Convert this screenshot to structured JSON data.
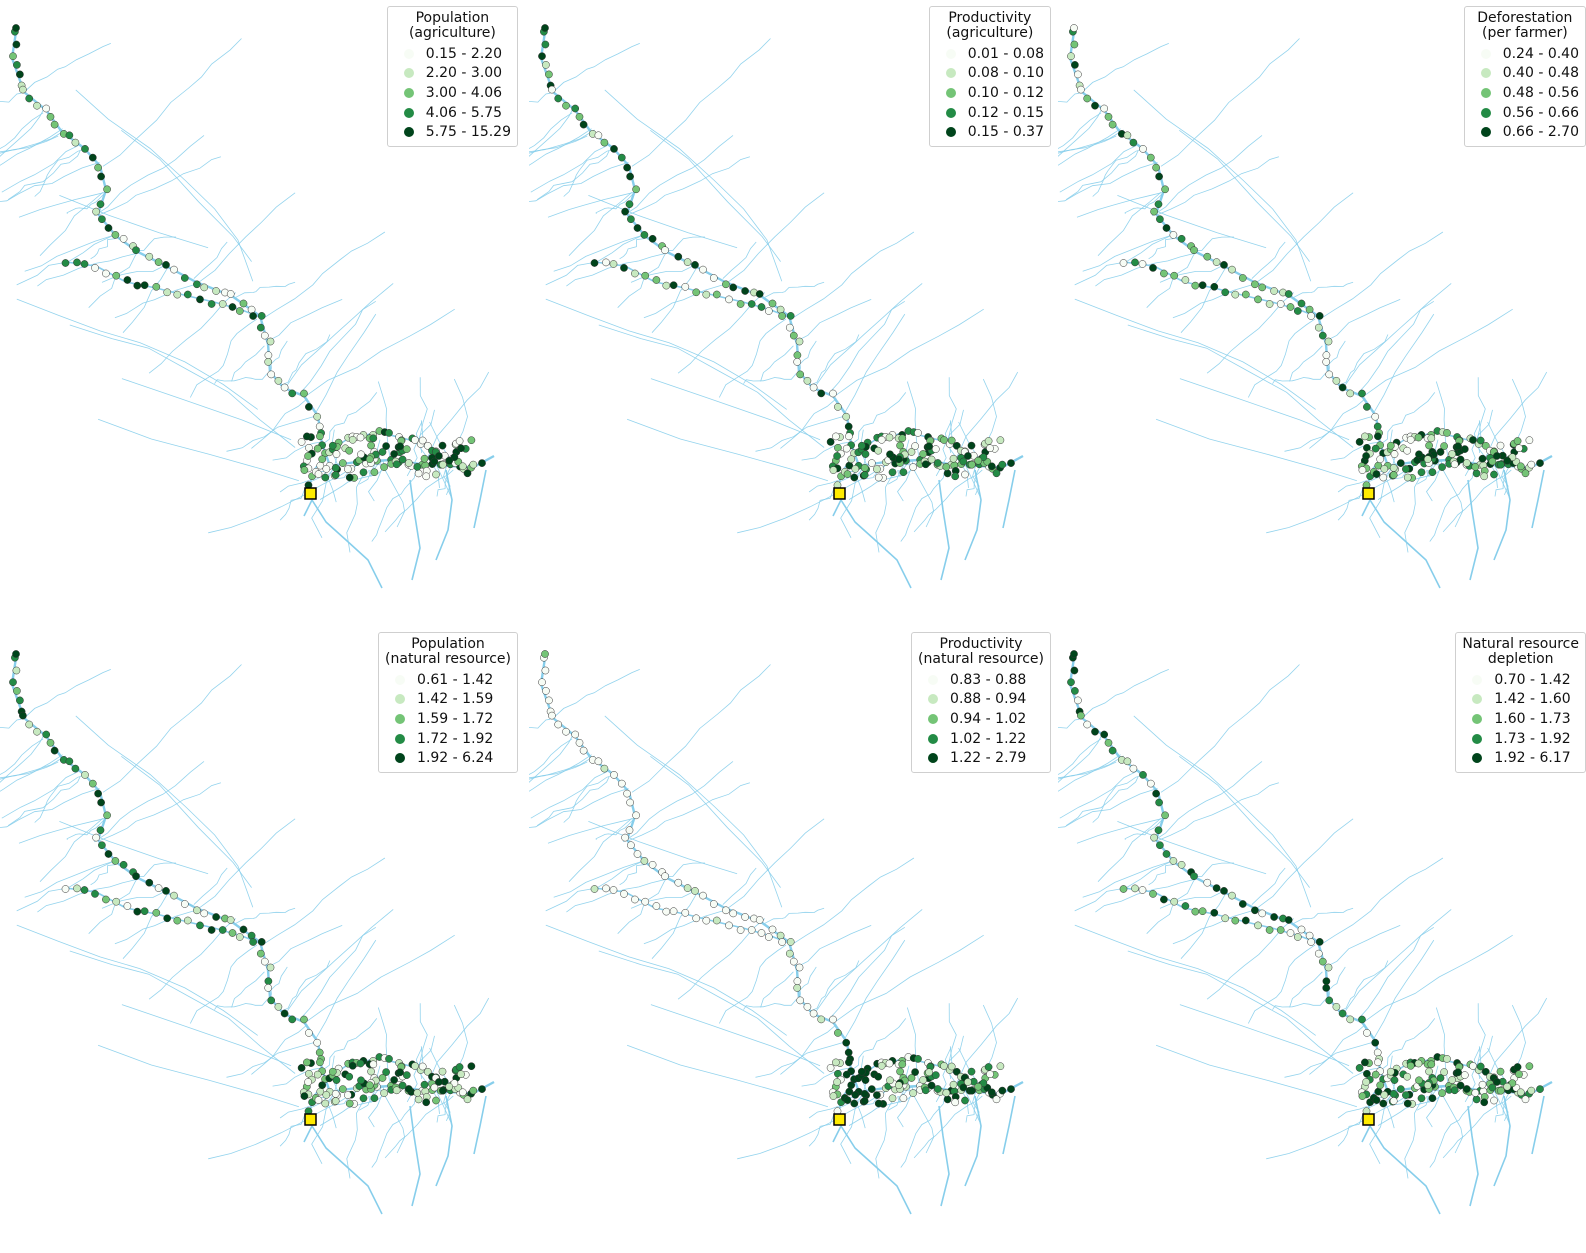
{
  "figure": {
    "classes": [
      "#f7fcf5",
      "#c7e9c0",
      "#74c476",
      "#238b45",
      "#00441b"
    ],
    "river_color": "#87ceeb",
    "marker_color": "#ffeb00",
    "panels": [
      {
        "id": "population-agriculture",
        "legend_title": "Population\n(agriculture)",
        "legend_labels": [
          "0.15 - 2.20",
          "2.20 - 3.00",
          "3.00 - 4.06",
          "4.06 - 5.75",
          "5.75 - 15.29"
        ]
      },
      {
        "id": "productivity-agriculture",
        "legend_title": "Productivity\n(agriculture)",
        "legend_labels": [
          "0.01 - 0.08",
          "0.08 - 0.10",
          "0.10 - 0.12",
          "0.12 - 0.15",
          "0.15 - 0.37"
        ]
      },
      {
        "id": "deforestation-per-farmer",
        "legend_title": "Deforestation\n(per farmer)",
        "legend_labels": [
          "0.24 - 0.40",
          "0.40 - 0.48",
          "0.48 - 0.56",
          "0.56 - 0.66",
          "0.66 - 2.70"
        ]
      },
      {
        "id": "population-natural-resource",
        "legend_title": "Population\n(natural resource)",
        "legend_labels": [
          "0.61 - 1.42",
          "1.42 - 1.59",
          "1.59 - 1.72",
          "1.72 - 1.92",
          "1.92 - 6.24"
        ]
      },
      {
        "id": "productivity-natural-resource",
        "legend_title": "Productivity\n(natural resource)",
        "legend_labels": [
          "0.83 - 0.88",
          "0.88 - 0.94",
          "0.94 - 1.02",
          "1.02 - 1.22",
          "1.22 - 2.79"
        ]
      },
      {
        "id": "natural-resource-depletion",
        "legend_title": "Natural resource\ndepletion",
        "legend_labels": [
          "0.70 - 1.42",
          "1.42 - 1.60",
          "1.60 - 1.73",
          "1.73 - 1.92",
          "1.92 - 6.17"
        ]
      }
    ]
  }
}
